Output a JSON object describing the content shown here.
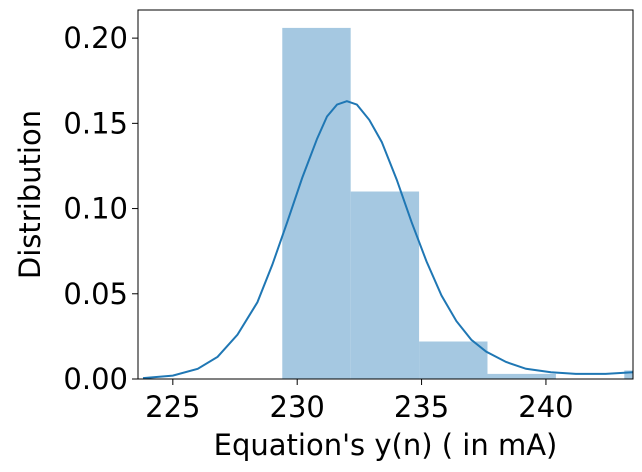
{
  "chart_data": {
    "type": "histogram",
    "title": "",
    "xlabel": "Equation's y(n) ( in mA)",
    "ylabel": "Distribution",
    "xlim": [
      223.6,
      243.5
    ],
    "ylim": [
      0,
      0.2165
    ],
    "x_ticks": [
      225,
      230,
      235,
      240
    ],
    "x_tick_labels": [
      "225",
      "230",
      "235",
      "240"
    ],
    "y_ticks": [
      0.0,
      0.05,
      0.1,
      0.15,
      0.2
    ],
    "y_tick_labels": [
      "0.00",
      "0.05",
      "0.10",
      "0.15",
      "0.20"
    ],
    "grid": false,
    "legend": "none",
    "bins": [
      {
        "x0": 229.4,
        "x1": 232.15,
        "value": 0.206
      },
      {
        "x0": 232.15,
        "x1": 234.9,
        "value": 0.11
      },
      {
        "x0": 234.9,
        "x1": 237.65,
        "value": 0.022
      },
      {
        "x0": 237.65,
        "x1": 240.4,
        "value": 0.003
      },
      {
        "x0": 240.4,
        "x1": 243.15,
        "value": 0.0
      },
      {
        "x0": 243.15,
        "x1": 245.9,
        "value": 0.005
      }
    ],
    "kde": {
      "x": [
        223.8,
        225.0,
        226.0,
        226.8,
        227.6,
        228.4,
        229.0,
        229.6,
        230.2,
        230.8,
        231.2,
        231.6,
        232.0,
        232.4,
        232.9,
        233.4,
        234.0,
        234.6,
        235.2,
        235.8,
        236.4,
        237.0,
        237.6,
        238.4,
        239.2,
        240.2,
        241.2,
        242.4,
        243.5
      ],
      "y": [
        0.0005,
        0.002,
        0.006,
        0.013,
        0.026,
        0.045,
        0.067,
        0.092,
        0.118,
        0.141,
        0.154,
        0.161,
        0.163,
        0.161,
        0.152,
        0.139,
        0.117,
        0.092,
        0.069,
        0.049,
        0.034,
        0.023,
        0.016,
        0.01,
        0.006,
        0.004,
        0.003,
        0.003,
        0.004
      ]
    },
    "colors": {
      "bars": "#a5c8e1",
      "kde_line": "#1f77b4",
      "axes": "#000000"
    }
  }
}
